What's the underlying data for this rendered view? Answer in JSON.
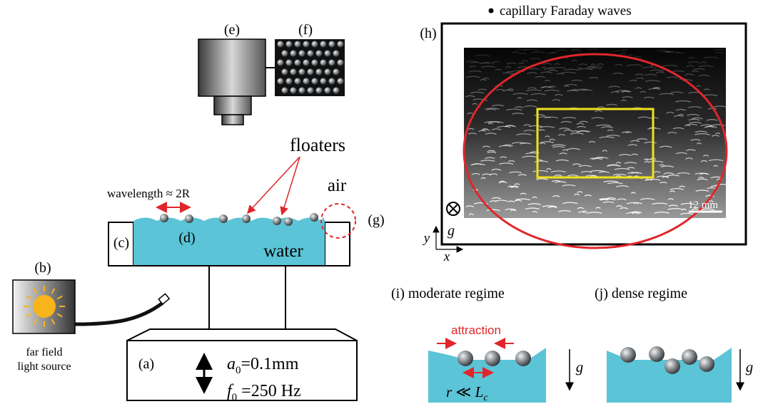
{
  "camera": {
    "label": "(e)"
  },
  "image_sensor": {
    "label": "(f)"
  },
  "floaters": {
    "label": "floaters"
  },
  "air": {
    "label": "air"
  },
  "wavelength": {
    "label": "wavelength ≈ 2R"
  },
  "meniscus": {
    "label": "(g)"
  },
  "container": {
    "label": "(c)"
  },
  "particle": {
    "label": "(d)"
  },
  "water": {
    "label": "water"
  },
  "light": {
    "label": "(b)",
    "caption_line1": "far field",
    "caption_line2": "light source"
  },
  "shaker": {
    "label": "(a)",
    "amplitude": {
      "symbol": "a",
      "subscript": "0",
      "value": "=0.1mm"
    },
    "frequency": {
      "symbol": "f",
      "subscript": "0",
      "value": " =250 Hz"
    }
  },
  "photo": {
    "heading": "capillary Faraday waves",
    "label": "(h)",
    "scale": "12 mm",
    "gravity": "g",
    "axis_y": "y",
    "axis_x": "x"
  },
  "moderate": {
    "label": "(i) moderate regime",
    "force": "attraction",
    "relation": {
      "symbol": "r",
      "operator": " ≪ ",
      "length": "L",
      "subscript": "c"
    },
    "gravity": "g"
  },
  "dense": {
    "label": "(j) dense regime",
    "gravity": "g"
  }
}
